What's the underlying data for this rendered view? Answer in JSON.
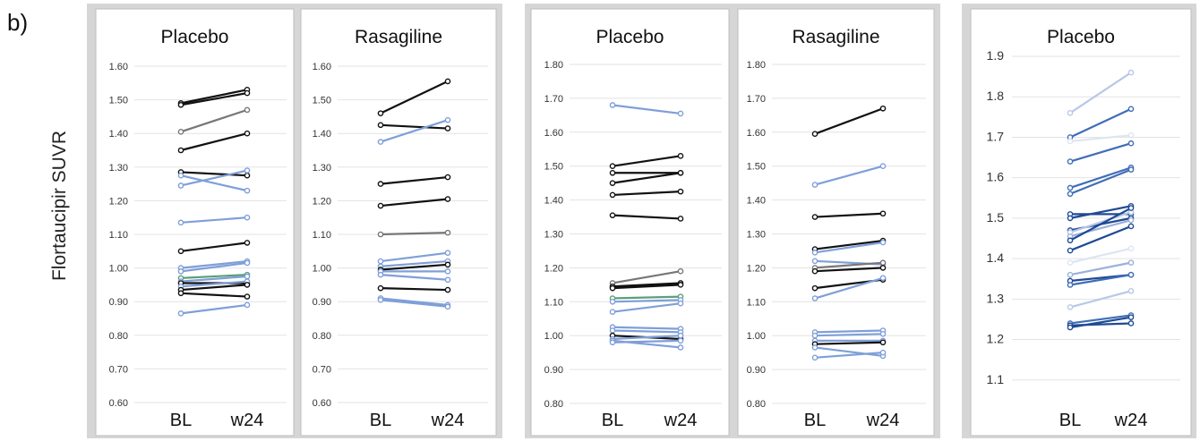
{
  "figure": {
    "panel_label": "b)",
    "ylabel": "Flortaucipir SUVR"
  },
  "chart_data": [
    {
      "type": "line",
      "title": "Placebo",
      "categories": [
        "BL",
        "w24"
      ],
      "ylim": [
        0.6,
        1.6
      ],
      "yticks": [
        "0.60",
        "0.70",
        "0.80",
        "0.90",
        "1.00",
        "1.10",
        "1.20",
        "1.30",
        "1.40",
        "1.50",
        "1.60"
      ],
      "grid": true,
      "series": [
        {
          "values": [
            1.49,
            1.53
          ],
          "color": "#111111"
        },
        {
          "values": [
            1.485,
            1.52
          ],
          "color": "#111111"
        },
        {
          "values": [
            1.405,
            1.47
          ],
          "color": "#777777"
        },
        {
          "values": [
            1.35,
            1.4
          ],
          "color": "#111111"
        },
        {
          "values": [
            1.285,
            1.275
          ],
          "color": "#111111"
        },
        {
          "values": [
            1.275,
            1.23
          ],
          "color": "#7f9fd9"
        },
        {
          "values": [
            1.245,
            1.29
          ],
          "color": "#7f9fd9"
        },
        {
          "values": [
            1.135,
            1.15
          ],
          "color": "#7f9fd9"
        },
        {
          "values": [
            1.05,
            1.075
          ],
          "color": "#111111"
        },
        {
          "values": [
            1.0,
            1.02
          ],
          "color": "#7f9fd9"
        },
        {
          "values": [
            0.99,
            1.015
          ],
          "color": "#7f9fd9"
        },
        {
          "values": [
            0.97,
            0.98
          ],
          "color": "#5aa07a"
        },
        {
          "values": [
            0.96,
            0.975
          ],
          "color": "#7f9fd9"
        },
        {
          "values": [
            0.955,
            0.955
          ],
          "color": "#111111"
        },
        {
          "values": [
            0.945,
            0.96
          ],
          "color": "#7f9fd9"
        },
        {
          "values": [
            0.935,
            0.95
          ],
          "color": "#111111"
        },
        {
          "values": [
            0.925,
            0.915
          ],
          "color": "#111111"
        },
        {
          "values": [
            0.865,
            0.89
          ],
          "color": "#7f9fd9"
        }
      ]
    },
    {
      "type": "line",
      "title": "Rasagiline",
      "categories": [
        "BL",
        "w24"
      ],
      "ylim": [
        0.6,
        1.6
      ],
      "yticks": [
        "0.60",
        "0.70",
        "0.80",
        "0.90",
        "1.00",
        "1.10",
        "1.20",
        "1.30",
        "1.40",
        "1.50",
        "1.60"
      ],
      "grid": true,
      "series": [
        {
          "values": [
            1.46,
            1.555
          ],
          "color": "#111111"
        },
        {
          "values": [
            1.425,
            1.415
          ],
          "color": "#111111"
        },
        {
          "values": [
            1.375,
            1.44
          ],
          "color": "#7f9fd9"
        },
        {
          "values": [
            1.25,
            1.27
          ],
          "color": "#111111"
        },
        {
          "values": [
            1.185,
            1.205
          ],
          "color": "#111111"
        },
        {
          "values": [
            1.1,
            1.105
          ],
          "color": "#777777"
        },
        {
          "values": [
            1.02,
            1.045
          ],
          "color": "#7f9fd9"
        },
        {
          "values": [
            1.005,
            1.02
          ],
          "color": "#7f9fd9"
        },
        {
          "values": [
            0.995,
            1.01
          ],
          "color": "#111111"
        },
        {
          "values": [
            0.99,
            0.99
          ],
          "color": "#7f9fd9"
        },
        {
          "values": [
            0.98,
            0.965
          ],
          "color": "#7f9fd9"
        },
        {
          "values": [
            0.94,
            0.935
          ],
          "color": "#111111"
        },
        {
          "values": [
            0.91,
            0.89
          ],
          "color": "#7f9fd9"
        },
        {
          "values": [
            0.905,
            0.885
          ],
          "color": "#7f9fd9"
        }
      ]
    },
    {
      "type": "line",
      "title": "Placebo",
      "categories": [
        "BL",
        "w24"
      ],
      "ylim": [
        0.8,
        1.8
      ],
      "yticks": [
        "0.80",
        "0.90",
        "1.00",
        "1.10",
        "1.20",
        "1.30",
        "1.40",
        "1.50",
        "1.60",
        "1.70",
        "1.80"
      ],
      "grid": true,
      "series": [
        {
          "values": [
            1.68,
            1.655
          ],
          "color": "#7f9fd9"
        },
        {
          "values": [
            1.5,
            1.53
          ],
          "color": "#111111"
        },
        {
          "values": [
            1.48,
            1.48
          ],
          "color": "#111111"
        },
        {
          "values": [
            1.45,
            1.48
          ],
          "color": "#111111"
        },
        {
          "values": [
            1.415,
            1.425
          ],
          "color": "#111111"
        },
        {
          "values": [
            1.355,
            1.345
          ],
          "color": "#111111"
        },
        {
          "values": [
            1.155,
            1.19
          ],
          "color": "#777777"
        },
        {
          "values": [
            1.145,
            1.155
          ],
          "color": "#111111"
        },
        {
          "values": [
            1.14,
            1.15
          ],
          "color": "#111111"
        },
        {
          "values": [
            1.11,
            1.115
          ],
          "color": "#5aa07a"
        },
        {
          "values": [
            1.1,
            1.105
          ],
          "color": "#7f9fd9"
        },
        {
          "values": [
            1.07,
            1.095
          ],
          "color": "#7f9fd9"
        },
        {
          "values": [
            1.025,
            1.02
          ],
          "color": "#7f9fd9"
        },
        {
          "values": [
            1.015,
            1.01
          ],
          "color": "#7f9fd9"
        },
        {
          "values": [
            1.0,
            0.99
          ],
          "color": "#111111"
        },
        {
          "values": [
            0.99,
            1.0
          ],
          "color": "#7f9fd9"
        },
        {
          "values": [
            0.985,
            0.965
          ],
          "color": "#7f9fd9"
        },
        {
          "values": [
            0.98,
            0.985
          ],
          "color": "#7f9fd9"
        }
      ]
    },
    {
      "type": "line",
      "title": "Rasagiline",
      "categories": [
        "BL",
        "w24"
      ],
      "ylim": [
        0.8,
        1.8
      ],
      "yticks": [
        "0.80",
        "0.90",
        "1.00",
        "1.10",
        "1.20",
        "1.30",
        "1.40",
        "1.50",
        "1.60",
        "1.70",
        "1.80"
      ],
      "grid": true,
      "series": [
        {
          "values": [
            1.595,
            1.67
          ],
          "color": "#111111"
        },
        {
          "values": [
            1.445,
            1.5
          ],
          "color": "#7f9fd9"
        },
        {
          "values": [
            1.35,
            1.36
          ],
          "color": "#111111"
        },
        {
          "values": [
            1.255,
            1.28
          ],
          "color": "#111111"
        },
        {
          "values": [
            1.245,
            1.275
          ],
          "color": "#7f9fd9"
        },
        {
          "values": [
            1.22,
            1.21
          ],
          "color": "#7f9fd9"
        },
        {
          "values": [
            1.2,
            1.215
          ],
          "color": "#777777"
        },
        {
          "values": [
            1.19,
            1.2
          ],
          "color": "#111111"
        },
        {
          "values": [
            1.14,
            1.165
          ],
          "color": "#111111"
        },
        {
          "values": [
            1.11,
            1.17
          ],
          "color": "#7f9fd9"
        },
        {
          "values": [
            1.01,
            1.015
          ],
          "color": "#7f9fd9"
        },
        {
          "values": [
            1.0,
            1.005
          ],
          "color": "#7f9fd9"
        },
        {
          "values": [
            0.985,
            0.985
          ],
          "color": "#7f9fd9"
        },
        {
          "values": [
            0.975,
            0.98
          ],
          "color": "#111111"
        },
        {
          "values": [
            0.965,
            0.94
          ],
          "color": "#7f9fd9"
        },
        {
          "values": [
            0.935,
            0.95
          ],
          "color": "#7f9fd9"
        }
      ]
    },
    {
      "type": "line",
      "title": "Placebo",
      "categories": [
        "BL",
        "w24"
      ],
      "ylim": [
        1.0,
        1.9
      ],
      "yticks": [
        "1.1",
        "1.2",
        "1.3",
        "1.4",
        "1.5",
        "1.6",
        "1.7",
        "1.8",
        "1.9"
      ],
      "grid": true,
      "series": [
        {
          "values": [
            1.76,
            1.86
          ],
          "color": "#b9c8e6"
        },
        {
          "values": [
            1.7,
            1.77
          ],
          "color": "#3f6db8"
        },
        {
          "values": [
            1.69,
            1.705
          ],
          "color": "#dde5f3"
        },
        {
          "values": [
            1.64,
            1.685
          ],
          "color": "#3f6db8"
        },
        {
          "values": [
            1.575,
            1.625
          ],
          "color": "#3f6db8"
        },
        {
          "values": [
            1.56,
            1.62
          ],
          "color": "#3f6db8"
        },
        {
          "values": [
            1.51,
            1.51
          ],
          "color": "#1f4a94"
        },
        {
          "values": [
            1.5,
            1.53
          ],
          "color": "#1f4a94"
        },
        {
          "values": [
            1.47,
            1.5
          ],
          "color": "#1f4a94"
        },
        {
          "values": [
            1.465,
            1.515
          ],
          "color": "#b9c8e6"
        },
        {
          "values": [
            1.455,
            1.495
          ],
          "color": "#9bb1dc"
        },
        {
          "values": [
            1.445,
            1.525
          ],
          "color": "#1f4a94"
        },
        {
          "values": [
            1.42,
            1.48
          ],
          "color": "#1f4a94"
        },
        {
          "values": [
            1.39,
            1.425
          ],
          "color": "#dde5f3"
        },
        {
          "values": [
            1.36,
            1.39
          ],
          "color": "#9bb1dc"
        },
        {
          "values": [
            1.345,
            1.36
          ],
          "color": "#1f4a94"
        },
        {
          "values": [
            1.335,
            1.36
          ],
          "color": "#3f6db8"
        },
        {
          "values": [
            1.28,
            1.32
          ],
          "color": "#b9c8e6"
        },
        {
          "values": [
            1.24,
            1.26
          ],
          "color": "#3f6db8"
        },
        {
          "values": [
            1.235,
            1.24
          ],
          "color": "#1f4a94"
        },
        {
          "values": [
            1.23,
            1.255
          ],
          "color": "#1f4a94"
        }
      ]
    }
  ]
}
